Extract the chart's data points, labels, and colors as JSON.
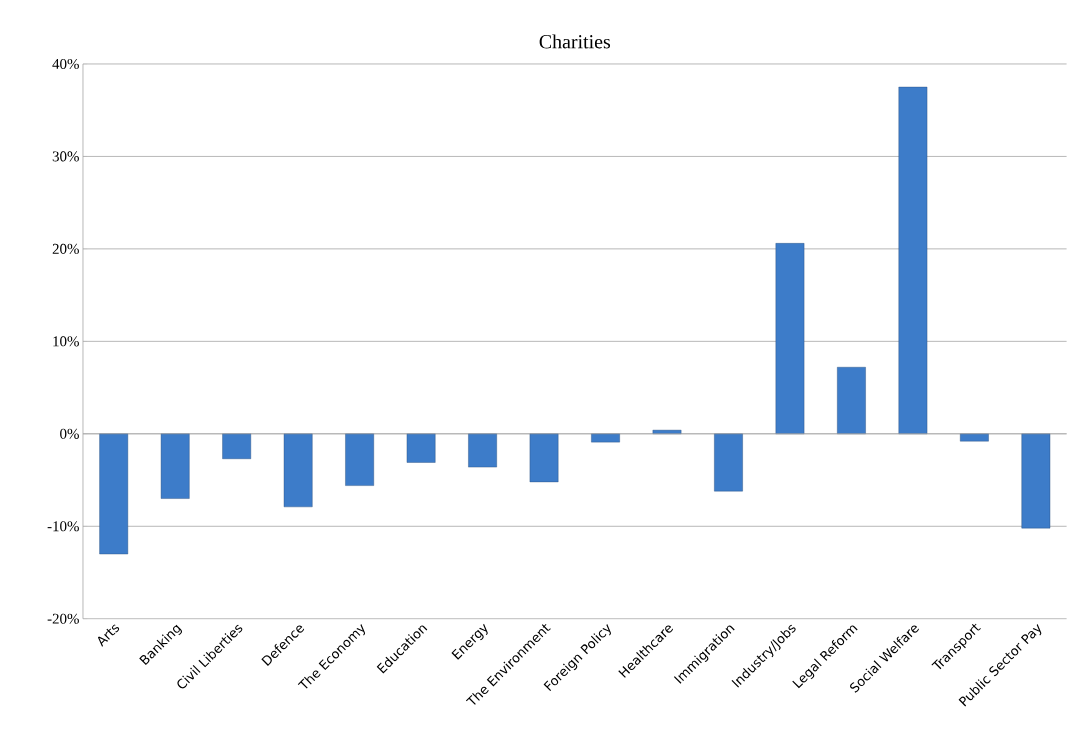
{
  "chart_data": {
    "type": "bar",
    "title": "Charities",
    "categories": [
      "Arts",
      "Banking",
      "Civil Liberties",
      "Defence",
      "The Economy",
      "Education",
      "Energy",
      "The Environment",
      "Foreign Policy",
      "Healthcare",
      "Immigration",
      "Industry/Jobs",
      "Legal Reform",
      "Social Welfare",
      "Transport",
      "Public Sector Pay"
    ],
    "values": [
      -13.0,
      -7.0,
      -2.7,
      -7.9,
      -5.6,
      -3.1,
      -3.6,
      -5.2,
      -0.9,
      0.4,
      -6.2,
      20.6,
      7.2,
      37.5,
      -0.8,
      -10.2
    ],
    "color": "#3d7cc9",
    "ylim": [
      -20,
      40
    ],
    "yticks": [
      {
        "value": -20,
        "label": "-20%"
      },
      {
        "value": -10,
        "label": "-10%"
      },
      {
        "value": 0,
        "label": "0%"
      },
      {
        "value": 10,
        "label": "10%"
      },
      {
        "value": 20,
        "label": "20%"
      },
      {
        "value": 30,
        "label": "30%"
      },
      {
        "value": 40,
        "label": "40%"
      }
    ],
    "grid": "y"
  }
}
